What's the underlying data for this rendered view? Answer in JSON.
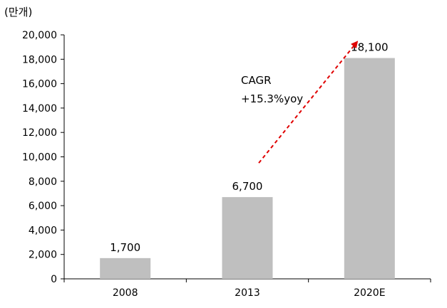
{
  "chart_data": {
    "type": "bar",
    "unit_label": "(만개)",
    "categories": [
      "2008",
      "2013",
      "2020E"
    ],
    "values": [
      1700,
      6700,
      18100
    ],
    "data_labels": [
      "1,700",
      "6,700",
      "18,100"
    ],
    "ylim": [
      0,
      20000
    ],
    "yticks": [
      0,
      2000,
      4000,
      6000,
      8000,
      10000,
      12000,
      14000,
      16000,
      18000,
      20000
    ],
    "ytick_labels": [
      "0",
      "2,000",
      "4,000",
      "6,000",
      "8,000",
      "10,000",
      "12,000",
      "14,000",
      "16,000",
      "18,000",
      "20,000"
    ],
    "grid": false,
    "bar_color": "#bfbfbf",
    "annotation": {
      "line1": "CAGR",
      "line2": "+15.3%yoy",
      "arrow_color": "#e00000"
    }
  }
}
